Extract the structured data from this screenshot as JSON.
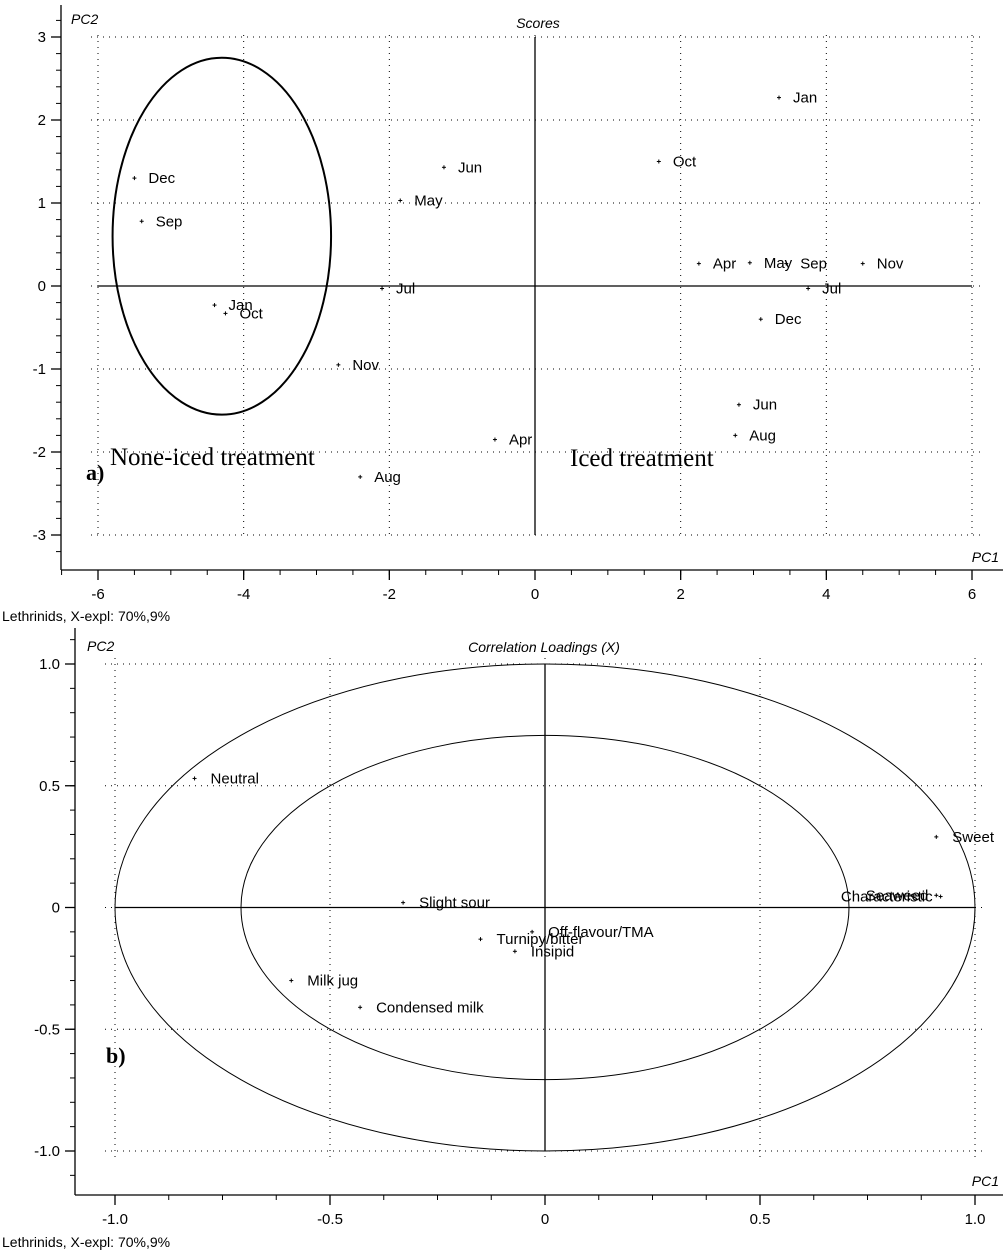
{
  "chart_data": [
    {
      "type": "scatter",
      "title": "Scores",
      "xlabel": "PC1",
      "ylabel": "PC2",
      "xlim": [
        -6.6,
        6.3
      ],
      "ylim": [
        -3.3,
        3.3
      ],
      "xticks": [
        -6,
        -4,
        -2,
        0,
        2,
        4,
        6
      ],
      "yticks": [
        -3,
        -2,
        -1,
        0,
        1,
        2,
        3
      ],
      "panel_label": "a)",
      "footer": "Lethrinids, X-expl: 70%,9%",
      "annotations": [
        "None-iced treatment",
        "Iced treatment"
      ],
      "ellipse": {
        "cx": -4.3,
        "cy": 0.6,
        "rx": 1.5,
        "ry": 2.15
      },
      "points": [
        {
          "label": "Dec",
          "x": -5.5,
          "y": 1.3
        },
        {
          "label": "Sep",
          "x": -5.4,
          "y": 0.78
        },
        {
          "label": "Jan",
          "x": -4.4,
          "y": -0.23
        },
        {
          "label": "Oct",
          "x": -4.25,
          "y": -0.33
        },
        {
          "label": "Nov",
          "x": -2.7,
          "y": -0.95
        },
        {
          "label": "Aug",
          "x": -2.4,
          "y": -2.3
        },
        {
          "label": "Jul",
          "x": -2.1,
          "y": -0.03
        },
        {
          "label": "May",
          "x": -1.85,
          "y": 1.03
        },
        {
          "label": "Jun",
          "x": -1.25,
          "y": 1.43
        },
        {
          "label": "Apr",
          "x": -0.55,
          "y": -1.85
        },
        {
          "label": "Oct",
          "x": 1.7,
          "y": 1.5
        },
        {
          "label": "Jan",
          "x": 3.35,
          "y": 2.27
        },
        {
          "label": "Apr",
          "x": 2.25,
          "y": 0.27
        },
        {
          "label": "May",
          "x": 2.95,
          "y": 0.28
        },
        {
          "label": "Sep",
          "x": 3.45,
          "y": 0.27
        },
        {
          "label": "Nov",
          "x": 4.5,
          "y": 0.27
        },
        {
          "label": "Jul",
          "x": 3.75,
          "y": -0.03
        },
        {
          "label": "Dec",
          "x": 3.1,
          "y": -0.4
        },
        {
          "label": "Jun",
          "x": 2.8,
          "y": -1.43
        },
        {
          "label": "Aug",
          "x": 2.75,
          "y": -1.8
        }
      ]
    },
    {
      "type": "scatter",
      "title": "Correlation Loadings (X)",
      "xlabel": "PC1",
      "ylabel": "PC2",
      "xlim": [
        -1.1,
        1.06
      ],
      "ylim": [
        -1.1,
        1.08
      ],
      "xticks": [
        "-1.0",
        "-0.5",
        "0",
        "0.5",
        "1.0"
      ],
      "yticks": [
        "-1.0",
        "-0.5",
        "0",
        "0.5",
        "1.0"
      ],
      "panel_label": "b)",
      "footer": "Lethrinids, X-expl: 70%,9%",
      "circles": [
        1.0,
        0.707
      ],
      "points": [
        {
          "label": "Neutral",
          "x": -0.815,
          "y": 0.53
        },
        {
          "label": "Sweet",
          "x": 0.91,
          "y": 0.29
        },
        {
          "label": "Seaweed",
          "x": 0.91,
          "y": 0.05
        },
        {
          "label": "Characteristic",
          "x": 0.92,
          "y": 0.045
        },
        {
          "label": "Slight sour",
          "x": -0.33,
          "y": 0.02
        },
        {
          "label": "Off-flavour/TMA",
          "x": -0.03,
          "y": -0.1
        },
        {
          "label": "Turnipy/bitter",
          "x": -0.15,
          "y": -0.13
        },
        {
          "label": "Insipid",
          "x": -0.07,
          "y": -0.18
        },
        {
          "label": "Milk jug",
          "x": -0.59,
          "y": -0.3
        },
        {
          "label": "Condensed milk",
          "x": -0.43,
          "y": -0.41
        }
      ]
    }
  ]
}
